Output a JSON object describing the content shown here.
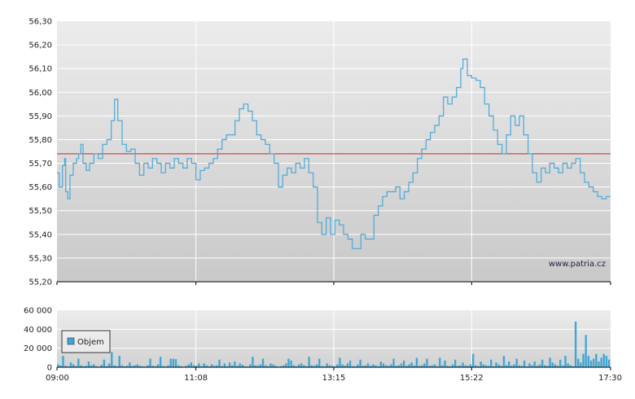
{
  "watermark": "www.patria.cz",
  "colors": {
    "price_line": "#4aa8d8",
    "reference_line": "#cc2222",
    "volume_bar": "#3ea6d4",
    "grid": "#ffffff",
    "axis": "#000000"
  },
  "chart_data": [
    {
      "type": "line",
      "x_time_labels": [
        "09:00",
        "11:08",
        "13:15",
        "15:22",
        "17:30"
      ],
      "ylim": [
        55.2,
        56.3
      ],
      "y_ticks": [
        "55,20",
        "55,30",
        "55,40",
        "55,50",
        "55,60",
        "55,70",
        "55,80",
        "55,90",
        "56,00",
        "56,10",
        "56,20",
        "56,30"
      ],
      "reference_value": 55.74,
      "series": [
        {
          "points": [
            [
              "09:00",
              55.66
            ],
            [
              "09:02",
              55.6
            ],
            [
              "09:05",
              55.69
            ],
            [
              "09:07",
              55.72
            ],
            [
              "09:08",
              55.58
            ],
            [
              "09:10",
              55.55
            ],
            [
              "09:12",
              55.65
            ],
            [
              "09:15",
              55.7
            ],
            [
              "09:18",
              55.72
            ],
            [
              "09:20",
              55.74
            ],
            [
              "09:22",
              55.78
            ],
            [
              "09:24",
              55.7
            ],
            [
              "09:27",
              55.67
            ],
            [
              "09:30",
              55.7
            ],
            [
              "09:34",
              55.74
            ],
            [
              "09:38",
              55.72
            ],
            [
              "09:42",
              55.78
            ],
            [
              "09:46",
              55.8
            ],
            [
              "09:50",
              55.88
            ],
            [
              "09:53",
              55.97
            ],
            [
              "09:56",
              55.88
            ],
            [
              "10:00",
              55.78
            ],
            [
              "10:04",
              55.75
            ],
            [
              "10:08",
              55.76
            ],
            [
              "10:12",
              55.7
            ],
            [
              "10:16",
              55.65
            ],
            [
              "10:20",
              55.7
            ],
            [
              "10:24",
              55.68
            ],
            [
              "10:28",
              55.72
            ],
            [
              "10:32",
              55.7
            ],
            [
              "10:36",
              55.66
            ],
            [
              "10:40",
              55.7
            ],
            [
              "10:44",
              55.68
            ],
            [
              "10:48",
              55.72
            ],
            [
              "10:52",
              55.7
            ],
            [
              "10:56",
              55.68
            ],
            [
              "11:00",
              55.72
            ],
            [
              "11:04",
              55.7
            ],
            [
              "11:08",
              55.63
            ],
            [
              "11:12",
              55.67
            ],
            [
              "11:16",
              55.68
            ],
            [
              "11:20",
              55.7
            ],
            [
              "11:24",
              55.72
            ],
            [
              "11:28",
              55.76
            ],
            [
              "11:32",
              55.8
            ],
            [
              "11:36",
              55.82
            ],
            [
              "11:40",
              55.82
            ],
            [
              "11:44",
              55.88
            ],
            [
              "11:48",
              55.93
            ],
            [
              "11:52",
              55.95
            ],
            [
              "11:56",
              55.92
            ],
            [
              "12:00",
              55.88
            ],
            [
              "12:04",
              55.82
            ],
            [
              "12:08",
              55.8
            ],
            [
              "12:12",
              55.78
            ],
            [
              "12:16",
              55.74
            ],
            [
              "12:20",
              55.7
            ],
            [
              "12:24",
              55.6
            ],
            [
              "12:28",
              55.65
            ],
            [
              "12:32",
              55.68
            ],
            [
              "12:36",
              55.66
            ],
            [
              "12:40",
              55.7
            ],
            [
              "12:44",
              55.68
            ],
            [
              "12:48",
              55.72
            ],
            [
              "12:52",
              55.66
            ],
            [
              "12:56",
              55.6
            ],
            [
              "13:00",
              55.45
            ],
            [
              "13:04",
              55.4
            ],
            [
              "13:08",
              55.47
            ],
            [
              "13:12",
              55.4
            ],
            [
              "13:16",
              55.46
            ],
            [
              "13:20",
              55.44
            ],
            [
              "13:24",
              55.4
            ],
            [
              "13:28",
              55.38
            ],
            [
              "13:32",
              55.34
            ],
            [
              "13:36",
              55.34
            ],
            [
              "13:40",
              55.4
            ],
            [
              "13:44",
              55.38
            ],
            [
              "13:48",
              55.38
            ],
            [
              "13:52",
              55.48
            ],
            [
              "13:56",
              55.52
            ],
            [
              "14:00",
              55.56
            ],
            [
              "14:04",
              55.58
            ],
            [
              "14:08",
              55.58
            ],
            [
              "14:12",
              55.6
            ],
            [
              "14:16",
              55.55
            ],
            [
              "14:20",
              55.58
            ],
            [
              "14:24",
              55.62
            ],
            [
              "14:28",
              55.66
            ],
            [
              "14:32",
              55.72
            ],
            [
              "14:36",
              55.76
            ],
            [
              "14:40",
              55.8
            ],
            [
              "14:44",
              55.83
            ],
            [
              "14:48",
              55.86
            ],
            [
              "14:52",
              55.9
            ],
            [
              "14:56",
              55.98
            ],
            [
              "15:00",
              55.95
            ],
            [
              "15:04",
              55.98
            ],
            [
              "15:08",
              56.02
            ],
            [
              "15:12",
              56.1
            ],
            [
              "15:14",
              56.14
            ],
            [
              "15:18",
              56.07
            ],
            [
              "15:22",
              56.06
            ],
            [
              "15:26",
              56.05
            ],
            [
              "15:30",
              56.02
            ],
            [
              "15:34",
              55.95
            ],
            [
              "15:38",
              55.9
            ],
            [
              "15:42",
              55.84
            ],
            [
              "15:46",
              55.78
            ],
            [
              "15:50",
              55.74
            ],
            [
              "15:54",
              55.82
            ],
            [
              "15:58",
              55.9
            ],
            [
              "16:02",
              55.86
            ],
            [
              "16:06",
              55.9
            ],
            [
              "16:10",
              55.82
            ],
            [
              "16:14",
              55.74
            ],
            [
              "16:18",
              55.66
            ],
            [
              "16:22",
              55.62
            ],
            [
              "16:26",
              55.68
            ],
            [
              "16:30",
              55.66
            ],
            [
              "16:34",
              55.7
            ],
            [
              "16:38",
              55.68
            ],
            [
              "16:42",
              55.66
            ],
            [
              "16:46",
              55.7
            ],
            [
              "16:50",
              55.68
            ],
            [
              "16:54",
              55.7
            ],
            [
              "16:58",
              55.72
            ],
            [
              "17:02",
              55.66
            ],
            [
              "17:06",
              55.62
            ],
            [
              "17:10",
              55.6
            ],
            [
              "17:14",
              55.58
            ],
            [
              "17:18",
              55.56
            ],
            [
              "17:22",
              55.55
            ],
            [
              "17:26",
              55.56
            ],
            [
              "17:30",
              55.56
            ]
          ]
        }
      ],
      "grid": true
    },
    {
      "type": "bar",
      "ylim": [
        0,
        60000
      ],
      "y_ticks": [
        "0",
        "20 000",
        "40 000",
        "60 000"
      ],
      "x_time_labels": [
        "09:00",
        "11:08",
        "13:15",
        "15:22",
        "17:30"
      ],
      "legend": "Objem",
      "legend_position": "left",
      "values": [
        3000,
        2000,
        12000,
        1500,
        800,
        5000,
        3000,
        1200,
        9000,
        2000,
        1000,
        1500,
        6000,
        2000,
        3000,
        1000,
        500,
        2500,
        8000,
        1200,
        4000,
        16000,
        2000,
        1000,
        12000,
        2000,
        900,
        1500,
        5000,
        1200,
        2000,
        3000,
        1500,
        1000,
        600,
        2000,
        9000,
        1500,
        1000,
        3000,
        11000,
        1200,
        700,
        2000,
        9000,
        9000,
        8500,
        2000,
        1000,
        500,
        1500,
        3000,
        5000,
        2000,
        1500,
        4000,
        1000,
        4000,
        2000,
        1000,
        3000,
        1500,
        2000,
        8000,
        1200,
        4000,
        1000,
        5000,
        2000,
        6000,
        1500,
        4000,
        2500,
        1000,
        700,
        3000,
        11000,
        2000,
        1500,
        3000,
        9000,
        2000,
        1000,
        4000,
        3000,
        1500,
        500,
        1200,
        2000,
        4000,
        9000,
        7000,
        2000,
        1000,
        3000,
        4000,
        2000,
        1000,
        11000,
        2000,
        1500,
        3000,
        9000,
        1200,
        900,
        4000,
        2000,
        1500,
        900,
        3000,
        10000,
        3000,
        1500,
        4000,
        7000,
        1200,
        900,
        3000,
        8000,
        1500,
        2000,
        4000,
        1500,
        3000,
        2000,
        1000,
        6000,
        4000,
        2000,
        1500,
        3000,
        9000,
        1500,
        2000,
        4000,
        7000,
        1500,
        3000,
        5000,
        2000,
        10000,
        1500,
        2000,
        4000,
        9000,
        1500,
        2000,
        3000,
        1000,
        10000,
        2000,
        7000,
        1500,
        1000,
        3000,
        8000,
        1500,
        2000,
        5000,
        2000,
        1500,
        3000,
        14000,
        2000,
        1000,
        6000,
        3000,
        2000,
        1500,
        8000,
        1000,
        5000,
        3000,
        1500,
        12000,
        2000,
        6000,
        1500,
        3000,
        9000,
        2000,
        1500,
        7000,
        1000,
        4000,
        2000,
        6000,
        1500,
        3000,
        8000,
        2000,
        1500,
        10000,
        5000,
        3000,
        1500,
        8000,
        2000,
        12000,
        4000,
        2000,
        1000,
        48000,
        9000,
        5000,
        14000,
        34000,
        12000,
        7000,
        9000,
        14000,
        6000,
        10000,
        14000,
        12000,
        8000
      ]
    }
  ]
}
